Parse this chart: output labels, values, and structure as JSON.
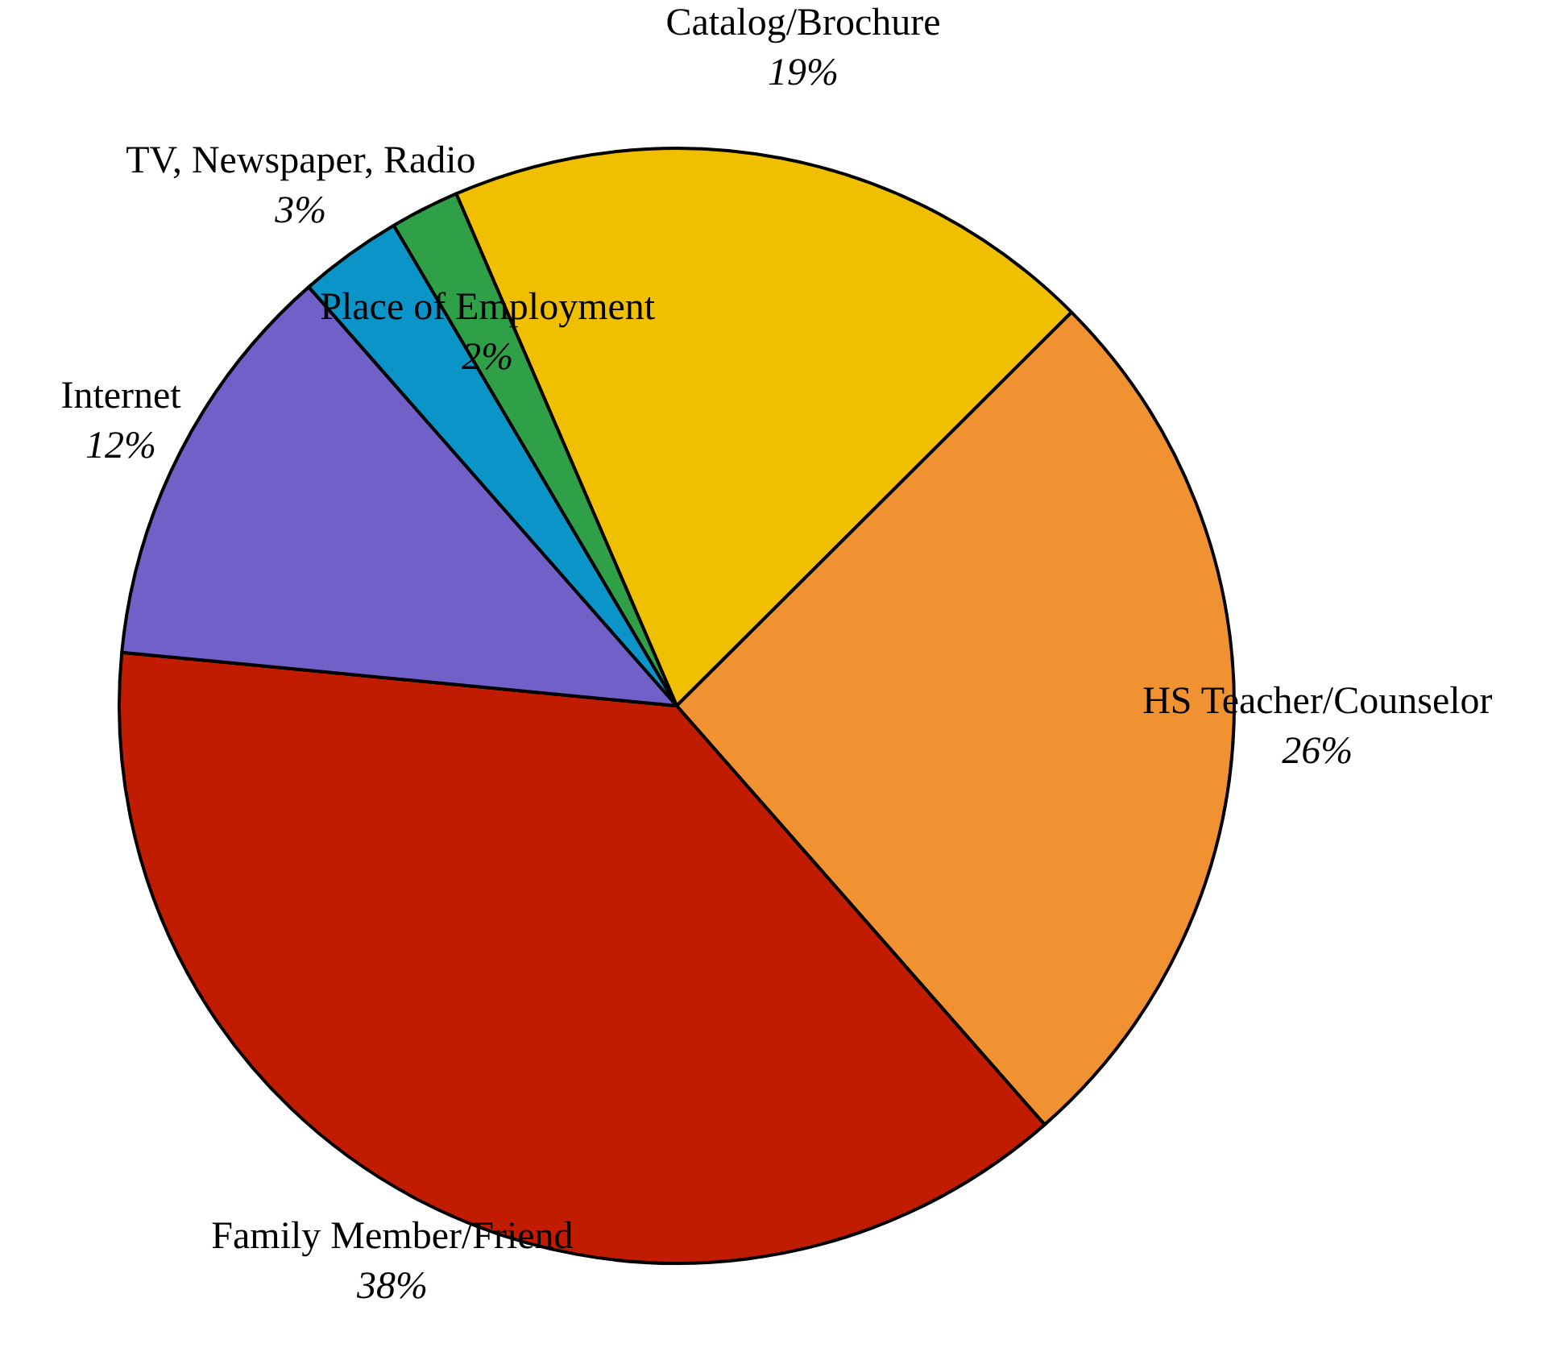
{
  "chart_data": {
    "type": "pie",
    "categories": [
      "Catalog/Brochure",
      "HS Teacher/Counselor",
      "Family Member/Friend",
      "Internet",
      "TV, Newspaper, Radio",
      "Place of Employment"
    ],
    "values": [
      19,
      26,
      38,
      12,
      3,
      2
    ],
    "value_labels": [
      "19%",
      "26%",
      "38%",
      "12%",
      "3%",
      "2%"
    ],
    "colors": [
      "#f0c000",
      "#f09232",
      "#c21c00",
      "#7060c8",
      "#0a94c8",
      "#30a048"
    ],
    "legend": false
  }
}
